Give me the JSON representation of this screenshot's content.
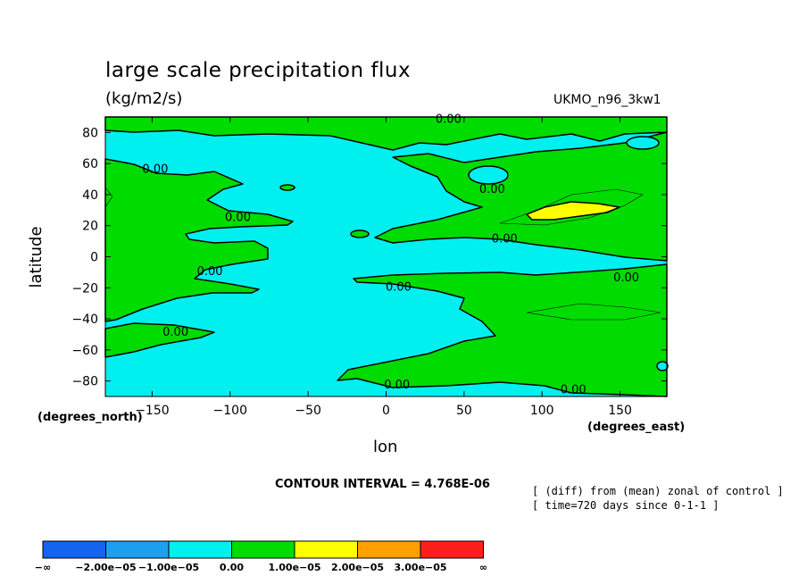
{
  "chart_data": {
    "type": "contour-map",
    "title": "large scale precipitation flux",
    "units": "(kg/m2/s)",
    "model": "UKMO_n96_3kw1",
    "xlabel": "lon",
    "ylabel": "latitude",
    "x_unit_label": "(degrees_east)",
    "y_unit_label": "(degrees_north)",
    "xlim": [
      -180,
      180
    ],
    "ylim": [
      -90,
      90
    ],
    "x_ticks": [
      -150,
      -100,
      -50,
      0,
      50,
      100,
      150
    ],
    "y_ticks": [
      80,
      60,
      40,
      20,
      0,
      -20,
      -40,
      -60,
      -80
    ],
    "x_tick_labels": [
      "−150",
      "−100",
      "−50",
      "0",
      "50",
      "100",
      "150"
    ],
    "y_tick_labels": [
      "80",
      "60",
      "40",
      "20",
      "0",
      "−20",
      "−40",
      "−60",
      "−80"
    ],
    "contour_labels": [
      {
        "text": "0.00",
        "lon": 40,
        "lat": 89
      },
      {
        "text": "0.00",
        "lon": -148,
        "lat": 57
      },
      {
        "text": "0.00",
        "lon": -95,
        "lat": 26
      },
      {
        "text": "0.00",
        "lon": 68,
        "lat": 44
      },
      {
        "text": "0.00",
        "lon": 76,
        "lat": 12
      },
      {
        "text": "0.00",
        "lon": -113,
        "lat": -9
      },
      {
        "text": "0.00",
        "lon": 8,
        "lat": -19
      },
      {
        "text": "0.00",
        "lon": 154,
        "lat": -13
      },
      {
        "text": "0.00",
        "lon": -135,
        "lat": -48
      },
      {
        "text": "0.00",
        "lon": 7,
        "lat": -82
      },
      {
        "text": "0.00",
        "lon": 120,
        "lat": -85
      }
    ],
    "contour_interval_text": "CONTOUR INTERVAL = 4.768E-06",
    "notes": [
      "[ (diff) from (mean) zonal of control ]",
      "[ time=720 days since 0-1-1 ]"
    ],
    "colorbar": {
      "colors": [
        "#1464f0",
        "#1ea0f0",
        "#00f0f0",
        "#00dc00",
        "#ffff00",
        "#ffa000",
        "#ff1e1e"
      ],
      "labels": [
        "−∞",
        "−2.00e−05",
        "−1.00e−05",
        "0.00",
        "1.00e−05",
        "2.00e−05",
        "3.00e−05",
        "∞"
      ]
    },
    "fill_colors": {
      "negative": "#00f0f0",
      "positive": "#00dc00",
      "high": "#ffff00"
    }
  }
}
